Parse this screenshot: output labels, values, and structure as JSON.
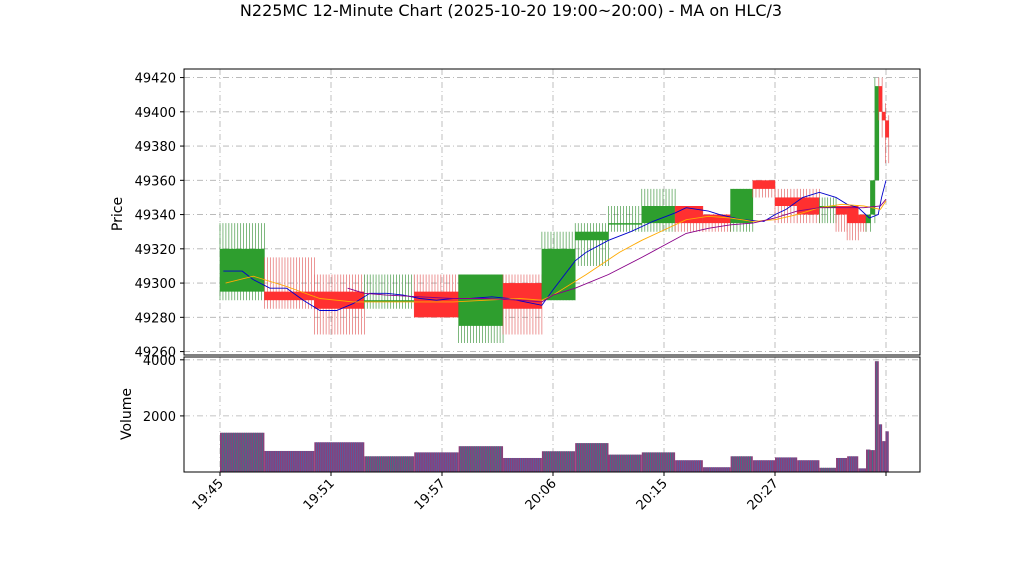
{
  "chart_data": {
    "type": "candlestick",
    "title": "N225MC 12-Minute Chart (2025-10-20 19:00~20:00) - MA on HLC/3",
    "price_panel": {
      "ylabel": "Price",
      "ylim": [
        49258,
        49425
      ],
      "yticks": [
        49260,
        49280,
        49300,
        49320,
        49340,
        49360,
        49380,
        49400,
        49420
      ],
      "grid": true
    },
    "volume_panel": {
      "ylabel": "Volume",
      "ylim": [
        0,
        4100
      ],
      "yticks": [
        2000,
        4000
      ],
      "grid": true
    },
    "x_axis": {
      "tick_labels": [
        "19:45",
        "19:51",
        "19:57",
        "20:06",
        "20:15",
        "20:27"
      ],
      "tick_index": [
        0,
        10,
        20,
        30,
        40,
        50
      ]
    },
    "candles": [
      {
        "o": 49295,
        "h": 49335,
        "l": 49290,
        "c": 49320,
        "v": 1400,
        "w": 4
      },
      {
        "o": 49295,
        "h": 49315,
        "l": 49285,
        "c": 49290,
        "v": 750,
        "w": 4.5
      },
      {
        "o": 49295,
        "h": 49305,
        "l": 49270,
        "c": 49285,
        "v": 1060,
        "w": 4.5
      },
      {
        "o": 49290,
        "h": 49305,
        "l": 49285,
        "c": 49290,
        "v": 560,
        "w": 4.5
      },
      {
        "o": 49295,
        "h": 49305,
        "l": 49280,
        "c": 49280,
        "v": 700,
        "w": 4
      },
      {
        "o": 49275,
        "h": 49305,
        "l": 49265,
        "c": 49305,
        "v": 920,
        "w": 4
      },
      {
        "o": 49300,
        "h": 49305,
        "l": 49270,
        "c": 49285,
        "v": 500,
        "w": 3.5
      },
      {
        "o": 49290,
        "h": 49330,
        "l": 49290,
        "c": 49320,
        "v": 740,
        "w": 3
      },
      {
        "o": 49325,
        "h": 49335,
        "l": 49310,
        "c": 49330,
        "v": 1030,
        "w": 3
      },
      {
        "o": 49335,
        "h": 49345,
        "l": 49330,
        "c": 49335,
        "v": 620,
        "w": 3
      },
      {
        "o": 49335,
        "h": 49355,
        "l": 49330,
        "c": 49345,
        "v": 700,
        "w": 3
      },
      {
        "o": 49345,
        "h": 49345,
        "l": 49330,
        "c": 49335,
        "v": 420,
        "w": 2.5
      },
      {
        "o": 49340,
        "h": 49340,
        "l": 49330,
        "c": 49335,
        "v": 170,
        "w": 2.5
      },
      {
        "o": 49335,
        "h": 49355,
        "l": 49330,
        "c": 49355,
        "v": 560,
        "w": 2
      },
      {
        "o": 49360,
        "h": 49360,
        "l": 49350,
        "c": 49355,
        "v": 420,
        "w": 2
      },
      {
        "o": 49350,
        "h": 49355,
        "l": 49335,
        "c": 49345,
        "v": 520,
        "w": 2
      },
      {
        "o": 49350,
        "h": 49355,
        "l": 49335,
        "c": 49340,
        "v": 420,
        "w": 2
      },
      {
        "o": 49345,
        "h": 49350,
        "l": 49335,
        "c": 49345,
        "v": 150,
        "w": 1.5
      },
      {
        "o": 49345,
        "h": 49345,
        "l": 49330,
        "c": 49340,
        "v": 500,
        "w": 1
      },
      {
        "o": 49345,
        "h": 49345,
        "l": 49325,
        "c": 49335,
        "v": 560,
        "w": 1
      },
      {
        "o": 49340,
        "h": 49340,
        "l": 49330,
        "c": 49335,
        "v": 130,
        "w": 0.7
      },
      {
        "o": 49335,
        "h": 49340,
        "l": 49330,
        "c": 49340,
        "v": 800,
        "w": 0.4
      },
      {
        "o": 49340,
        "h": 49360,
        "l": 49335,
        "c": 49360,
        "v": 780,
        "w": 0.4
      },
      {
        "o": 49360,
        "h": 49420,
        "l": 49360,
        "c": 49415,
        "v": 3950,
        "w": 0.35
      },
      {
        "o": 49415,
        "h": 49420,
        "l": 49395,
        "c": 49400,
        "v": 1700,
        "w": 0.3
      },
      {
        "o": 49400,
        "h": 49405,
        "l": 49385,
        "c": 49395,
        "v": 1100,
        "w": 0.3
      },
      {
        "o": 49395,
        "h": 49398,
        "l": 49370,
        "c": 49385,
        "v": 1450,
        "w": 0.3
      }
    ],
    "series": [
      {
        "name": "",
        "color": "#0000cc",
        "x": [
          0.3,
          1,
          2,
          3,
          4.5,
          5,
          6,
          7.5,
          9,
          10.5,
          12,
          13.5,
          15,
          16.5,
          18,
          19.5,
          21,
          22.5,
          24.5,
          26,
          27.5,
          29,
          30,
          32,
          33,
          35,
          37,
          39,
          41,
          42,
          44,
          45,
          47,
          49,
          50,
          51,
          52.5,
          54,
          55.5,
          56.5,
          57.5,
          58.5,
          59.3,
          59.6,
          60
        ],
        "y": [
          49307,
          49307,
          49307,
          49302,
          49297,
          49297,
          49297,
          49290,
          49284,
          49284,
          49288,
          49294,
          49294,
          49293,
          49291,
          49290,
          49291,
          49291,
          49292,
          49291,
          49289,
          49287,
          49296,
          49313,
          49318,
          49325,
          49330,
          49336,
          49341,
          49344,
          49342,
          49340,
          49337,
          49336,
          49340,
          49343,
          49350,
          49353,
          49350,
          49346,
          49344,
          49338,
          49340,
          49350,
          49360
        ]
      },
      {
        "name": "",
        "color": "#ffaa00",
        "x": [
          0.5,
          3,
          6,
          9,
          12,
          15,
          18,
          21,
          24,
          27,
          29,
          30,
          33,
          36,
          38,
          40,
          42,
          44,
          46,
          48,
          50,
          52,
          54,
          56,
          58,
          59.5,
          60
        ],
        "y": [
          49300,
          49304,
          49298,
          49291,
          49289,
          49289,
          49289,
          49289,
          49290,
          49291,
          49290,
          49293,
          49305,
          49318,
          49325,
          49331,
          49337,
          49339,
          49338,
          49336,
          49337,
          49340,
          49344,
          49346,
          49345,
          49343,
          49348
        ]
      },
      {
        "name": "",
        "color": "#880088",
        "x": [
          11.5,
          13,
          15,
          18,
          21,
          24,
          27,
          29,
          30,
          32,
          35,
          38,
          40,
          42,
          44,
          46,
          48,
          50,
          52,
          54,
          56,
          58,
          59.5,
          60
        ],
        "y": [
          49297,
          49294,
          49293,
          49292,
          49291,
          49291,
          49290,
          49289,
          49293,
          49297,
          49305,
          49315,
          49322,
          49329,
          49332,
          49334,
          49335,
          49338,
          49342,
          49344,
          49344,
          49344,
          49345,
          49349
        ]
      }
    ]
  }
}
